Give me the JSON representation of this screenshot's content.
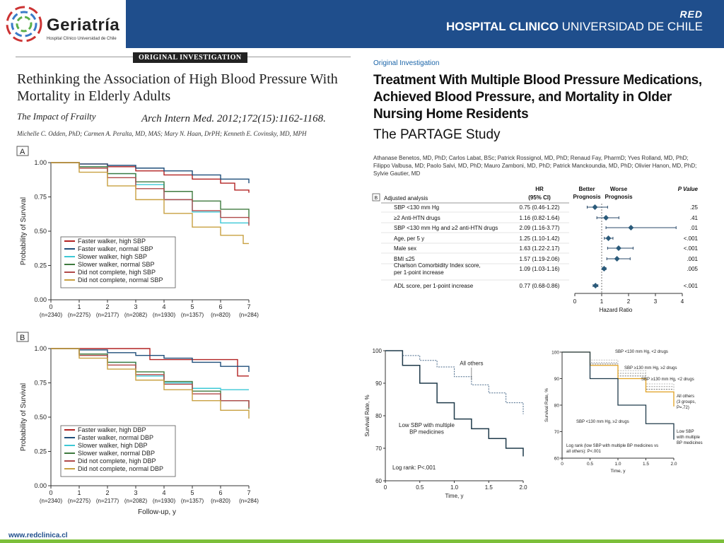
{
  "header": {
    "logo_name": "Geriatría",
    "logo_subtitle": "Hospital Clínico Universidad de Chile",
    "red_label": "RED",
    "hospital_bold": "HOSPITAL CLINICO",
    "hospital_rest": " UNIVERSIDAD DE CHILE"
  },
  "footer": {
    "url": "www.redclinica.cl"
  },
  "left_article": {
    "tag": "ORIGINAL INVESTIGATION",
    "title": "Rethinking the Association of High Blood Pressure With Mortality in Elderly Adults",
    "subtitle": "The Impact of Frailty",
    "citation": "Arch Intern Med. 2012;172(15):1162-1168.",
    "authors": "Michelle C. Odden, PhD; Carmen A. Peralta, MD, MAS; Mary N. Haan, DrPH; Kenneth E. Covinsky, MD, MPH"
  },
  "right_article": {
    "tag": "Original Investigation",
    "title": "Treatment With Multiple Blood Pressure Medications, Achieved Blood Pressure, and Mortality in Older Nursing Home Residents",
    "subtitle": "The PARTAGE Study",
    "authors": "Athanase Benetos, MD, PhD; Carlos Labat, BSc; Patrick Rossignol, MD, PhD; Renaud Fay, PharmD; Yves Rolland, MD, PhD; Filippo Valbusa, MD; Paolo Salvi, MD, PhD; Mauro Zamboni, MD, PhD; Patrick Manckoundia, MD, PhD; Olivier Hanon, MD, PhD; Sylvie Gautier, MD"
  },
  "colors": {
    "red": "#b22222",
    "navy": "#1f4e7a",
    "cyan": "#3cc8d6",
    "green": "#3f7a3f",
    "purple": "#b04a4a",
    "gold": "#c8a040",
    "dark": "#1f3a4a",
    "dashed": "#4a6a8a",
    "orange": "#e0a020"
  },
  "chart_data": [
    {
      "type": "line",
      "panel": "A",
      "ylabel": "Probability of Survival",
      "xlim": [
        0,
        7
      ],
      "ylim": [
        0,
        1
      ],
      "yticks": [
        "0.00",
        "0.25",
        "0.50",
        "0.75",
        "1.00"
      ],
      "xticks": [
        "0",
        "1",
        "2",
        "3",
        "4",
        "5",
        "6",
        "7"
      ],
      "at_risk": [
        "(n=2340)",
        "(n=2275)",
        "(n=2177)",
        "(n=2082)",
        "(n=1930)",
        "(n=1357)",
        "(n=820)",
        "(n=284)"
      ],
      "legend": [
        "Faster walker, high SBP",
        "Faster walker, normal SBP",
        "Slower walker, high SBP",
        "Slower walker, normal SBP",
        "Did not complete, high SBP",
        "Did not complete, normal SBP"
      ],
      "series": [
        {
          "name": "Faster walker, high SBP",
          "color": "#b22222",
          "x": [
            0,
            1,
            2,
            3,
            4,
            5,
            6,
            6.5,
            7
          ],
          "y": [
            1,
            0.99,
            0.97,
            0.94,
            0.91,
            0.88,
            0.85,
            0.8,
            0.78
          ]
        },
        {
          "name": "Faster walker, normal SBP",
          "color": "#1f4e7a",
          "x": [
            0,
            1,
            2,
            3,
            4,
            5,
            6,
            7
          ],
          "y": [
            1,
            0.99,
            0.98,
            0.96,
            0.94,
            0.91,
            0.88,
            0.85
          ]
        },
        {
          "name": "Slower walker, high SBP",
          "color": "#3cc8d6",
          "x": [
            0,
            1,
            2,
            3,
            4,
            5,
            6,
            7
          ],
          "y": [
            1,
            0.97,
            0.92,
            0.84,
            0.73,
            0.64,
            0.56,
            0.55
          ]
        },
        {
          "name": "Slower walker, normal SBP",
          "color": "#3f7a3f",
          "x": [
            0,
            1,
            2,
            3,
            4,
            5,
            6,
            7
          ],
          "y": [
            1,
            0.97,
            0.92,
            0.86,
            0.79,
            0.72,
            0.66,
            0.59
          ]
        },
        {
          "name": "Did not complete, high SBP",
          "color": "#b04a4a",
          "x": [
            0,
            1,
            2,
            3,
            4,
            5,
            6,
            7
          ],
          "y": [
            1,
            0.96,
            0.89,
            0.81,
            0.73,
            0.65,
            0.6,
            0.54
          ]
        },
        {
          "name": "Did not complete, normal SBP",
          "color": "#c8a040",
          "x": [
            0,
            1,
            2,
            3,
            4,
            5,
            6,
            6.8,
            7
          ],
          "y": [
            1,
            0.93,
            0.83,
            0.73,
            0.63,
            0.53,
            0.47,
            0.41,
            0.41
          ]
        }
      ]
    },
    {
      "type": "line",
      "panel": "B",
      "ylabel": "Probability of Survival",
      "xlabel": "Follow-up, y",
      "xlim": [
        0,
        7
      ],
      "ylim": [
        0,
        1
      ],
      "yticks": [
        "0.00",
        "0.25",
        "0.50",
        "0.75",
        "1.00"
      ],
      "xticks": [
        "0",
        "1",
        "2",
        "3",
        "4",
        "5",
        "6",
        "7"
      ],
      "at_risk": [
        "(n=2340)",
        "(n=2275)",
        "(n=2177)",
        "(n=2082)",
        "(n=1930)",
        "(n=1357)",
        "(n=820)",
        "(n=284)"
      ],
      "legend": [
        "Faster walker, high DBP",
        "Faster walker, normal DBP",
        "Slower walker, high DBP",
        "Slower walker, normal DBP",
        "Did not complete, high DBP",
        "Did not complete, normal DBP"
      ],
      "series": [
        {
          "name": "Faster walker, high DBP",
          "color": "#b22222",
          "x": [
            0,
            3,
            3.5,
            5,
            6.5,
            6.6,
            7
          ],
          "y": [
            1,
            1,
            0.92,
            0.92,
            0.92,
            0.8,
            0.8
          ]
        },
        {
          "name": "Faster walker, normal DBP",
          "color": "#1f4e7a",
          "x": [
            0,
            1,
            2,
            3,
            4,
            5,
            6,
            7
          ],
          "y": [
            1,
            0.99,
            0.97,
            0.95,
            0.93,
            0.9,
            0.87,
            0.83
          ]
        },
        {
          "name": "Slower walker, high DBP",
          "color": "#3cc8d6",
          "x": [
            0,
            1,
            2,
            3,
            4,
            5,
            6,
            7
          ],
          "y": [
            1,
            0.96,
            0.9,
            0.8,
            0.75,
            0.71,
            0.7,
            0.7
          ]
        },
        {
          "name": "Slower walker, normal DBP",
          "color": "#3f7a3f",
          "x": [
            0,
            1,
            2,
            3,
            4,
            5,
            6,
            7
          ],
          "y": [
            1,
            0.96,
            0.9,
            0.83,
            0.76,
            0.69,
            0.62,
            0.56
          ]
        },
        {
          "name": "Did not complete, high DBP",
          "color": "#b04a4a",
          "x": [
            0,
            1,
            2,
            3,
            4,
            5,
            6,
            7
          ],
          "y": [
            1,
            0.95,
            0.88,
            0.81,
            0.74,
            0.67,
            0.62,
            0.57
          ]
        },
        {
          "name": "Did not complete, normal DBP",
          "color": "#c8a040",
          "x": [
            0,
            1,
            2,
            3,
            4,
            5,
            6,
            7
          ],
          "y": [
            1,
            0.93,
            0.85,
            0.77,
            0.7,
            0.62,
            0.55,
            0.49
          ]
        }
      ]
    },
    {
      "type": "forest",
      "panel": "B",
      "header_col1": "Adjusted analysis",
      "header_hr": [
        "HR",
        "(95% CI)"
      ],
      "header_better": [
        "Better",
        "Prognosis"
      ],
      "header_worse": [
        "Worse",
        "Prognosis"
      ],
      "header_p": "P Value",
      "xlabel": "Hazard Ratio",
      "xlim": [
        0,
        4
      ],
      "xticks": [
        "0",
        "1",
        "2",
        "3",
        "4"
      ],
      "rows": [
        {
          "label": [
            "SBP <130 mm Hg"
          ],
          "hr_text": "0.75 (0.46-1.22)",
          "hr": 0.75,
          "lo": 0.46,
          "hi": 1.22,
          "p": ".25"
        },
        {
          "label": [
            "≥2 Anti-HTN drugs"
          ],
          "hr_text": "1.16 (0.82-1.64)",
          "hr": 1.16,
          "lo": 0.82,
          "hi": 1.64,
          "p": ".41"
        },
        {
          "label": [
            "SBP <130 mm Hg and ≥2 anti-HTN drugs"
          ],
          "hr_text": "2.09 (1.16-3.77)",
          "hr": 2.09,
          "lo": 1.16,
          "hi": 3.77,
          "p": ".01"
        },
        {
          "label": [
            "Age, per 5 y"
          ],
          "hr_text": "1.25 (1.10-1.42)",
          "hr": 1.25,
          "lo": 1.1,
          "hi": 1.42,
          "p": "<.001"
        },
        {
          "label": [
            "Male sex"
          ],
          "hr_text": "1.63 (1.22-2.17)",
          "hr": 1.63,
          "lo": 1.22,
          "hi": 2.17,
          "p": "<.001"
        },
        {
          "label": [
            "BMI ≤25"
          ],
          "hr_text": "1.57 (1.19-2.06)",
          "hr": 1.57,
          "lo": 1.19,
          "hi": 2.06,
          "p": ".001"
        },
        {
          "label": [
            "Charlson Comorbidity Index score,",
            "per 1-point increase"
          ],
          "hr_text": "1.09 (1.03-1.16)",
          "hr": 1.09,
          "lo": 1.03,
          "hi": 1.16,
          "p": ".005"
        },
        {
          "label": [
            "ADL score, per 1-point increase"
          ],
          "hr_text": "0.77 (0.68-0.86)",
          "hr": 0.77,
          "lo": 0.68,
          "hi": 0.86,
          "p": "<.001"
        }
      ]
    },
    {
      "type": "line",
      "panel": "C",
      "ylabel": "Survival Rate, %",
      "xlabel": "Time, y",
      "xlim": [
        0,
        2
      ],
      "ylim": [
        60,
        100
      ],
      "yticks": [
        "60",
        "70",
        "80",
        "90",
        "100"
      ],
      "xticks": [
        "0",
        "0.5",
        "1.0",
        "1.5",
        "2.0"
      ],
      "annotation": "Log rank: P<.001",
      "series": [
        {
          "name": "All others",
          "color": "#4a6a8a",
          "dashed": true,
          "x": [
            0,
            0.25,
            0.5,
            0.75,
            1,
            1.25,
            1.5,
            1.75,
            2
          ],
          "y": [
            100,
            98.5,
            97,
            95,
            92,
            89.5,
            87,
            84,
            80.5
          ]
        },
        {
          "name": "Low SBP with multiple BP medicines",
          "color": "#1f3a4a",
          "x": [
            0,
            0.25,
            0.5,
            0.75,
            1,
            1.25,
            1.5,
            1.75,
            2
          ],
          "y": [
            100,
            95.5,
            90,
            84,
            79,
            76,
            73,
            70,
            67.5
          ]
        }
      ],
      "labels": {
        "all_others": "All others",
        "low_sbp": [
          "Low SBP with multiple",
          "BP medicines"
        ]
      }
    },
    {
      "type": "line",
      "panel": "D",
      "ylabel": "Survival Rate, %",
      "xlabel": "Time, y",
      "xlim": [
        0,
        2
      ],
      "ylim": [
        60,
        100
      ],
      "yticks": [
        "60",
        "70",
        "80",
        "90",
        "100"
      ],
      "xticks": [
        "0",
        "0.5",
        "1.0",
        "1.5",
        "2.0"
      ],
      "annotation": [
        "Log rank (low SBP with multiple BP medicines vs",
        "all others): P<.001"
      ],
      "series": [
        {
          "name": "SBP <130 mm Hg, <2 drugs",
          "color": "#999999",
          "dashed": true,
          "x": [
            0,
            0.5,
            1,
            1.5,
            2
          ],
          "y": [
            100,
            96,
            92,
            87,
            81
          ]
        },
        {
          "name": "SBP ≥130 mm Hg, ≥2 drugs",
          "color": "#777777",
          "dashed": true,
          "x": [
            0,
            0.5,
            1,
            1.5,
            2
          ],
          "y": [
            100,
            95.5,
            91,
            86,
            80
          ]
        },
        {
          "name": "SBP ≥130 mm Hg, <2 drugs",
          "color": "#bbbbbb",
          "dashed": true,
          "x": [
            0,
            0.5,
            1,
            1.5,
            2
          ],
          "y": [
            100,
            97,
            93,
            88,
            82
          ]
        },
        {
          "name": "All others (3 groups, P=.72)",
          "color": "#e0a020",
          "x": [
            0,
            0.5,
            1,
            1.5,
            2
          ],
          "y": [
            100,
            95,
            90,
            85,
            79.5
          ]
        },
        {
          "name": "SBP <130 mm Hg, ≥2 drugs",
          "color": "#1f3a4a",
          "x": [
            0,
            0.5,
            1,
            1.5,
            2
          ],
          "y": [
            100,
            90,
            80,
            73,
            67
          ]
        }
      ],
      "labels": {
        "l1": "SBP <130 mm Hg, <2 drugs",
        "l2": "SBP ≥130 mm Hg, ≥2 drugs",
        "l3": "SBP ≥130 mm Hg, <2 drugs",
        "l4": "SBP <130 mm Hg, ≥2 drugs",
        "others": [
          "All others",
          "(3 groups,",
          "P=.72)"
        ],
        "low": [
          "Low SBP",
          "with multiple",
          "BP medicines"
        ]
      }
    }
  ]
}
